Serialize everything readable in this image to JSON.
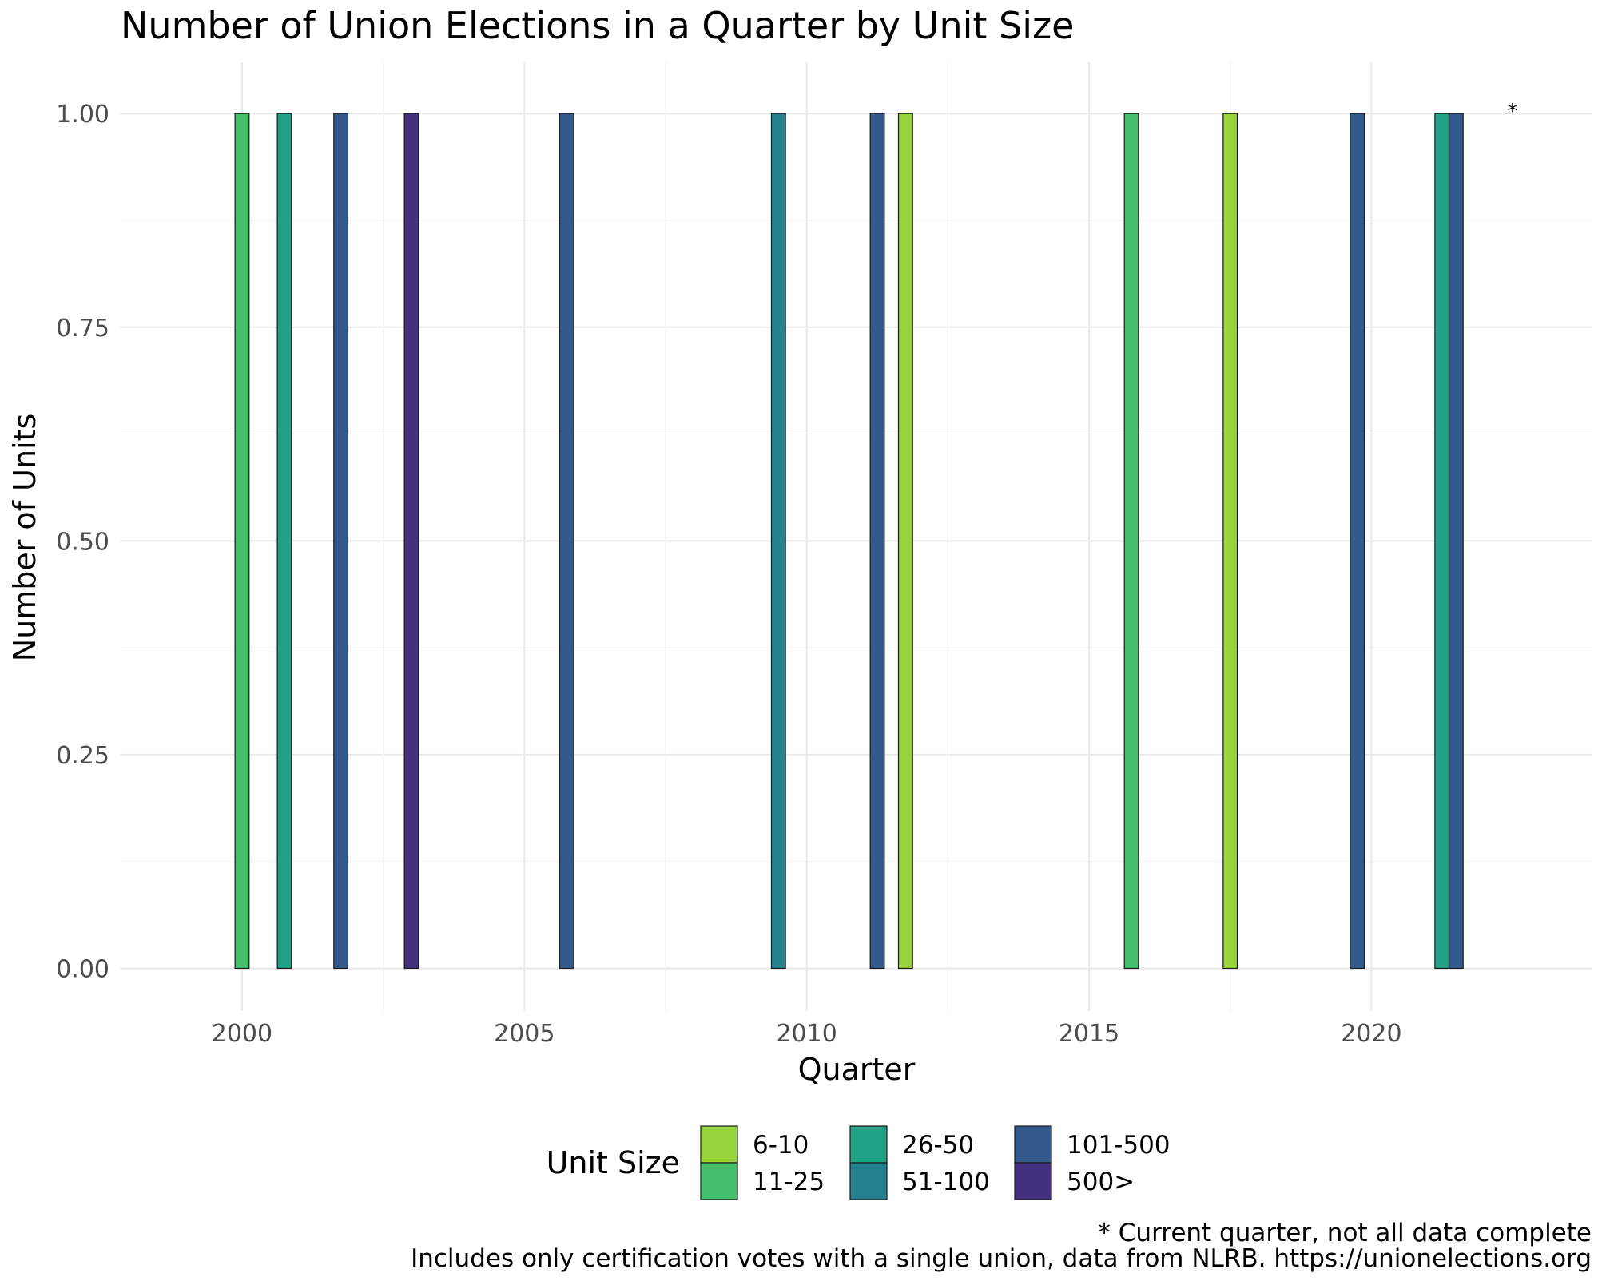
{
  "chart_data": {
    "type": "bar",
    "title": "Number of Union Elections in a Quarter by Unit Size",
    "xlabel": "Quarter",
    "ylabel": "Number of Units",
    "xlim": [
      1997.85,
      2023.9
    ],
    "ylim": [
      -0.05,
      1.06
    ],
    "x_ticks": [
      2000,
      2005,
      2010,
      2015,
      2020
    ],
    "x_tick_labels": [
      "2000",
      "2005",
      "2010",
      "2015",
      "2020"
    ],
    "y_ticks": [
      0,
      0.25,
      0.5,
      0.75,
      1
    ],
    "y_tick_labels": [
      "0.00",
      "0.25",
      "0.50",
      "0.75",
      "1.00"
    ],
    "grid": true,
    "legend": {
      "title": "Unit Size",
      "placement": "bottom",
      "entries": [
        {
          "label": "6-10",
          "color": "#97d43c"
        },
        {
          "label": "11-25",
          "color": "#46bf6c"
        },
        {
          "label": "26-50",
          "color": "#21a185"
        },
        {
          "label": "51-100",
          "color": "#25818d"
        },
        {
          "label": "101-500",
          "color": "#335a8c"
        },
        {
          "label": "500>",
          "color": "#443180"
        }
      ]
    },
    "series": [
      {
        "name": "6-10",
        "color": "#97d43c",
        "points": [
          {
            "x": 2011.75,
            "y": 1
          },
          {
            "x": 2017.5,
            "y": 1
          }
        ]
      },
      {
        "name": "11-25",
        "color": "#46bf6c",
        "points": [
          {
            "x": 2000.0,
            "y": 1
          },
          {
            "x": 2015.75,
            "y": 1
          }
        ]
      },
      {
        "name": "26-50",
        "color": "#21a185",
        "points": [
          {
            "x": 2000.75,
            "y": 1
          },
          {
            "x": 2021.25,
            "y": 1
          }
        ]
      },
      {
        "name": "51-100",
        "color": "#25818d",
        "points": [
          {
            "x": 2009.5,
            "y": 1
          }
        ]
      },
      {
        "name": "101-500",
        "color": "#335a8c",
        "points": [
          {
            "x": 2001.75,
            "y": 1
          },
          {
            "x": 2005.75,
            "y": 1
          },
          {
            "x": 2011.25,
            "y": 1
          },
          {
            "x": 2019.75,
            "y": 1
          },
          {
            "x": 2021.5,
            "y": 1
          }
        ]
      },
      {
        "name": "500>",
        "color": "#443180",
        "points": [
          {
            "x": 2003.0,
            "y": 1
          }
        ]
      }
    ],
    "current_quarter_marker": {
      "x": 2022.5,
      "y": 1,
      "label": "*"
    },
    "caption_lines": [
      "* Current quarter, not all data complete",
      "Includes only certification votes with a single union, data from NLRB. https://unionelections.org"
    ]
  }
}
